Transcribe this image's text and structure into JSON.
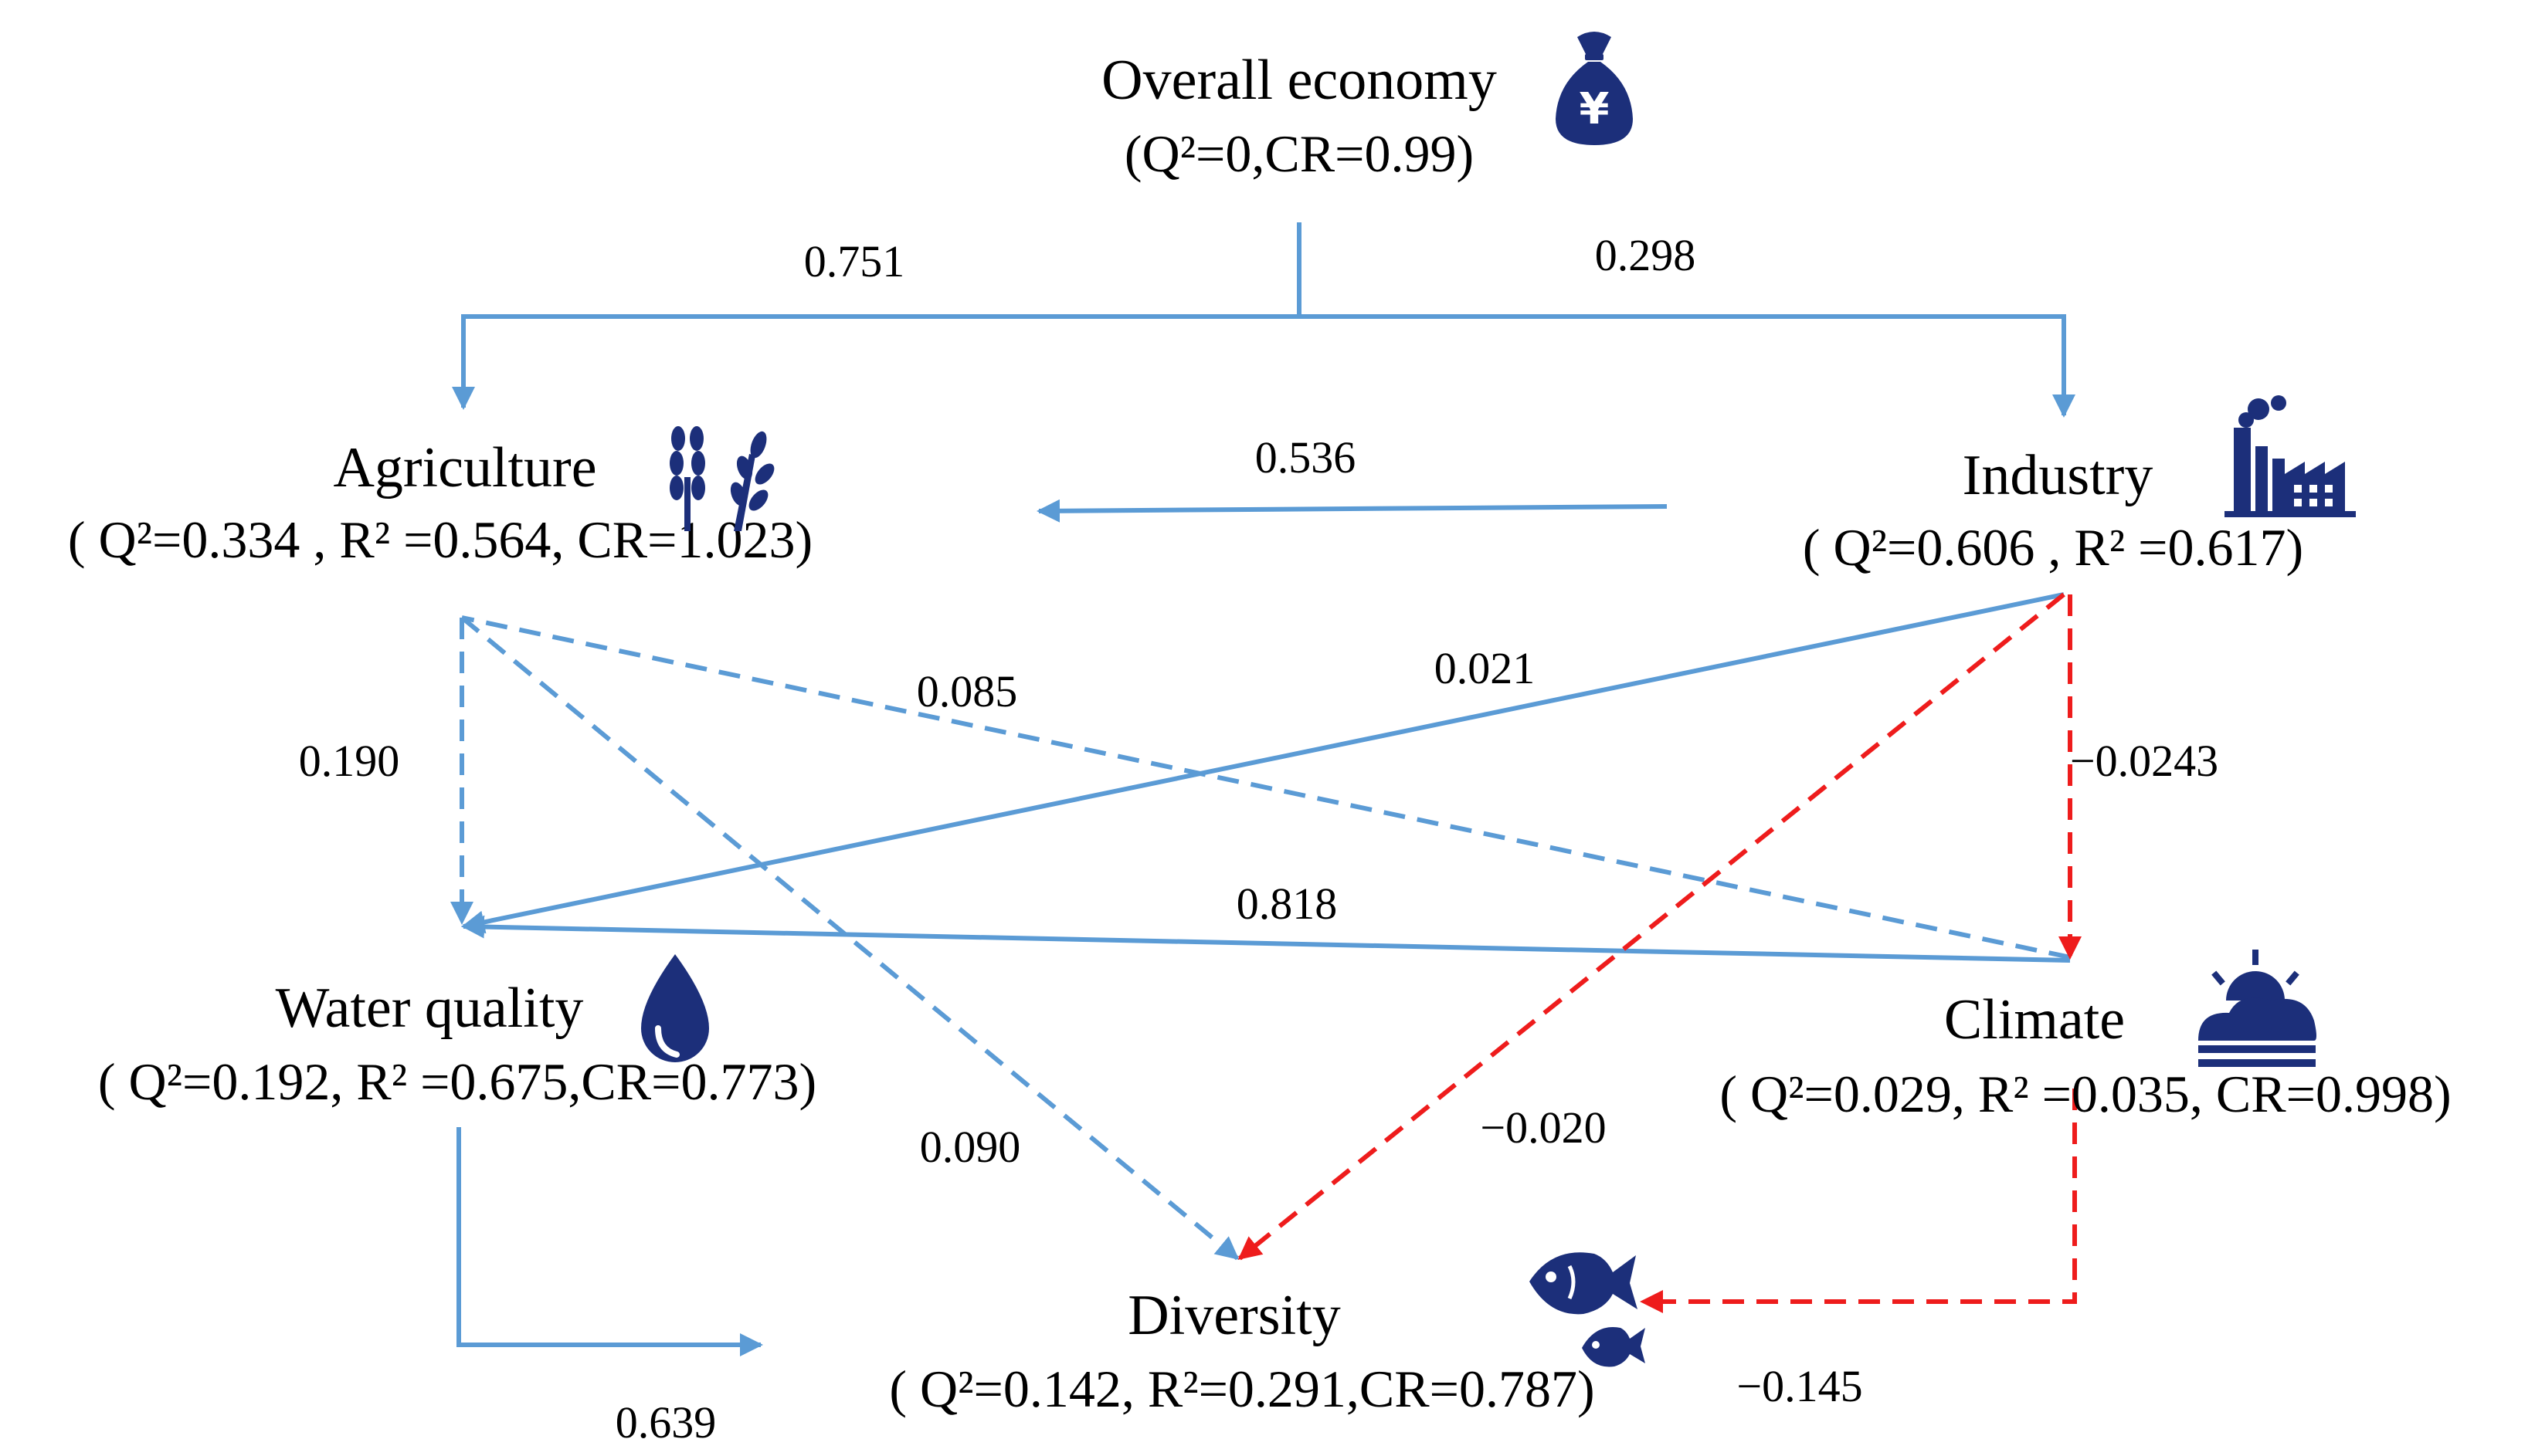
{
  "nodes": {
    "economy": {
      "title": "Overall economy",
      "stats": "(Q²=0,CR=0.99)",
      "icon": "money-bag-icon",
      "icon_glyph": "¥"
    },
    "agriculture": {
      "title": "Agriculture",
      "stats": "( Q²=0.334 , R² =0.564,  CR=1.023)",
      "icon": "wheat-icon"
    },
    "industry": {
      "title": "Industry",
      "stats": "( Q²=0.606 , R² =0.617)",
      "icon": "factory-icon"
    },
    "water": {
      "title": "Water quality",
      "stats": "( Q²=0.192, R²  =0.675,CR=0.773)",
      "icon": "water-drop-icon"
    },
    "climate": {
      "title": "Climate",
      "stats": "( Q²=0.029, R²  =0.035,  CR=0.998)",
      "icon": "sun-cloud-icon"
    },
    "diversity": {
      "title": "Diversity",
      "stats": "( Q²=0.142, R²=0.291,CR=0.787)",
      "icon": "fish-icon"
    }
  },
  "edges": [
    {
      "id": "economy-agriculture",
      "from": "Overall economy",
      "to": "Agriculture",
      "coefficient": "0.751",
      "style": "solid",
      "color": "#5b9bd5"
    },
    {
      "id": "economy-industry",
      "from": "Overall economy",
      "to": "Industry",
      "coefficient": "0.298",
      "style": "solid",
      "color": "#5b9bd5"
    },
    {
      "id": "industry-agriculture",
      "from": "Industry",
      "to": "Agriculture",
      "coefficient": "0.536",
      "style": "solid",
      "color": "#5b9bd5"
    },
    {
      "id": "agriculture-water",
      "from": "Agriculture",
      "to": "Water quality",
      "coefficient": "0.190",
      "style": "dashed",
      "color": "#5b9bd5"
    },
    {
      "id": "climate-agriculture",
      "from": "Climate",
      "to": "Agriculture",
      "coefficient": "0.085",
      "style": "dashed",
      "color": "#5b9bd5"
    },
    {
      "id": "industry-water",
      "from": "Industry",
      "to": "Water quality",
      "coefficient": "0.021",
      "style": "solid",
      "color": "#5b9bd5"
    },
    {
      "id": "industry-climate",
      "from": "Industry",
      "to": "Climate",
      "coefficient": "−0.0243",
      "style": "dashed",
      "color": "#ee1c1c"
    },
    {
      "id": "climate-water",
      "from": "Climate",
      "to": "Water quality",
      "coefficient": "0.818",
      "style": "solid",
      "color": "#5b9bd5"
    },
    {
      "id": "agriculture-diversity",
      "from": "Agriculture",
      "to": "Diversity",
      "coefficient": "0.090",
      "style": "dashed",
      "color": "#5b9bd5"
    },
    {
      "id": "industry-diversity",
      "from": "Industry",
      "to": "Diversity",
      "coefficient": "−0.020",
      "style": "dashed",
      "color": "#ee1c1c"
    },
    {
      "id": "water-diversity",
      "from": "Water quality",
      "to": "Diversity",
      "coefficient": "0.639",
      "style": "solid",
      "color": "#5b9bd5"
    },
    {
      "id": "climate-diversity",
      "from": "Climate",
      "to": "Diversity",
      "coefficient": "−0.145",
      "style": "dashed",
      "color": "#ee1c1c"
    }
  ],
  "colors": {
    "positive_path": "#5b9bd5",
    "negative_path": "#ee1c1c",
    "icon": "#1c2f7a"
  }
}
